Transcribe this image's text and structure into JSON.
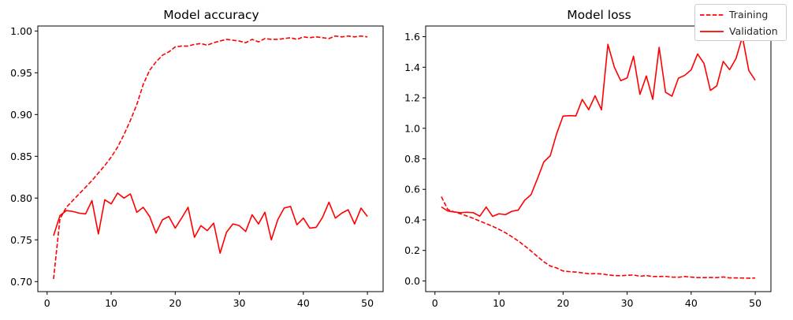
{
  "chart_data": [
    {
      "type": "line",
      "title": "Model accuracy",
      "xlabel": "",
      "ylabel": "",
      "xlim": [
        -1.45,
        52.45
      ],
      "ylim": [
        0.688,
        1.006
      ],
      "xticks": [
        0,
        10,
        20,
        30,
        40,
        50
      ],
      "yticks": [
        0.7,
        0.75,
        0.8,
        0.85,
        0.9,
        0.95,
        1.0
      ],
      "ytick_labels": [
        "0.70",
        "0.75",
        "0.80",
        "0.85",
        "0.90",
        "0.95",
        "1.00"
      ],
      "grid": false,
      "x": [
        1,
        2,
        3,
        4,
        5,
        6,
        7,
        8,
        9,
        10,
        11,
        12,
        13,
        14,
        15,
        16,
        17,
        18,
        19,
        20,
        21,
        22,
        23,
        24,
        25,
        26,
        27,
        28,
        29,
        30,
        31,
        32,
        33,
        34,
        35,
        36,
        37,
        38,
        39,
        40,
        41,
        42,
        43,
        44,
        45,
        46,
        47,
        48,
        49,
        50
      ],
      "series": [
        {
          "name": "Training",
          "color": "#ff0000",
          "dash": "dashed",
          "values": [
            0.703,
            0.775,
            0.789,
            0.797,
            0.805,
            0.813,
            0.821,
            0.83,
            0.839,
            0.849,
            0.861,
            0.876,
            0.893,
            0.912,
            0.936,
            0.953,
            0.963,
            0.971,
            0.975,
            0.981,
            0.982,
            0.982,
            0.984,
            0.985,
            0.983,
            0.986,
            0.988,
            0.99,
            0.989,
            0.988,
            0.986,
            0.99,
            0.987,
            0.991,
            0.99,
            0.99,
            0.991,
            0.992,
            0.99,
            0.993,
            0.992,
            0.993,
            0.992,
            0.991,
            0.994,
            0.993,
            0.994,
            0.993,
            0.994,
            0.993
          ]
        },
        {
          "name": "Validation",
          "color": "#ff0000",
          "dash": "solid",
          "values": [
            0.755,
            0.779,
            0.785,
            0.784,
            0.782,
            0.781,
            0.797,
            0.757,
            0.798,
            0.793,
            0.806,
            0.8,
            0.805,
            0.783,
            0.789,
            0.778,
            0.758,
            0.774,
            0.778,
            0.764,
            0.776,
            0.789,
            0.753,
            0.767,
            0.761,
            0.77,
            0.734,
            0.759,
            0.769,
            0.767,
            0.76,
            0.78,
            0.769,
            0.783,
            0.75,
            0.774,
            0.788,
            0.79,
            0.768,
            0.776,
            0.764,
            0.765,
            0.777,
            0.795,
            0.776,
            0.782,
            0.786,
            0.769,
            0.788,
            0.778
          ]
        }
      ]
    },
    {
      "type": "line",
      "title": "Model loss",
      "xlabel": "",
      "ylabel": "",
      "xlim": [
        -1.45,
        52.45
      ],
      "ylim": [
        -0.07,
        1.67
      ],
      "xticks": [
        0,
        10,
        20,
        30,
        40,
        50
      ],
      "yticks": [
        0.0,
        0.2,
        0.4,
        0.6,
        0.8,
        1.0,
        1.2,
        1.4,
        1.6
      ],
      "ytick_labels": [
        "0.0",
        "0.2",
        "0.4",
        "0.6",
        "0.8",
        "1.0",
        "1.2",
        "1.4",
        "1.6"
      ],
      "grid": false,
      "legend_location": "top-right",
      "x": [
        1,
        2,
        3,
        4,
        5,
        6,
        7,
        8,
        9,
        10,
        11,
        12,
        13,
        14,
        15,
        16,
        17,
        18,
        19,
        20,
        21,
        22,
        23,
        24,
        25,
        26,
        27,
        28,
        29,
        30,
        31,
        32,
        33,
        34,
        35,
        36,
        37,
        38,
        39,
        40,
        41,
        42,
        43,
        44,
        45,
        46,
        47,
        48,
        49,
        50
      ],
      "series": [
        {
          "name": "Training",
          "color": "#ff0000",
          "dash": "dashed",
          "values": [
            0.552,
            0.468,
            0.452,
            0.44,
            0.425,
            0.41,
            0.392,
            0.375,
            0.358,
            0.338,
            0.316,
            0.29,
            0.262,
            0.23,
            0.196,
            0.16,
            0.125,
            0.098,
            0.085,
            0.065,
            0.061,
            0.058,
            0.053,
            0.047,
            0.048,
            0.046,
            0.04,
            0.035,
            0.034,
            0.037,
            0.039,
            0.031,
            0.035,
            0.029,
            0.029,
            0.03,
            0.025,
            0.024,
            0.029,
            0.025,
            0.022,
            0.022,
            0.023,
            0.022,
            0.026,
            0.02,
            0.02,
            0.019,
            0.018,
            0.019
          ]
        },
        {
          "name": "Validation",
          "color": "#ff0000",
          "dash": "solid",
          "values": [
            0.485,
            0.458,
            0.452,
            0.447,
            0.45,
            0.447,
            0.424,
            0.484,
            0.423,
            0.44,
            0.434,
            0.456,
            0.464,
            0.528,
            0.565,
            0.67,
            0.78,
            0.82,
            0.965,
            1.08,
            1.083,
            1.081,
            1.189,
            1.122,
            1.213,
            1.121,
            1.55,
            1.401,
            1.312,
            1.33,
            1.472,
            1.222,
            1.343,
            1.19,
            1.53,
            1.236,
            1.21,
            1.328,
            1.347,
            1.383,
            1.487,
            1.425,
            1.248,
            1.278,
            1.438,
            1.384,
            1.457,
            1.6,
            1.378,
            1.315
          ]
        }
      ]
    }
  ],
  "legend": {
    "entries": [
      {
        "label": "Training",
        "color": "#ff0000",
        "dash": "dashed"
      },
      {
        "label": "Validation",
        "color": "#ff0000",
        "dash": "solid"
      }
    ]
  }
}
